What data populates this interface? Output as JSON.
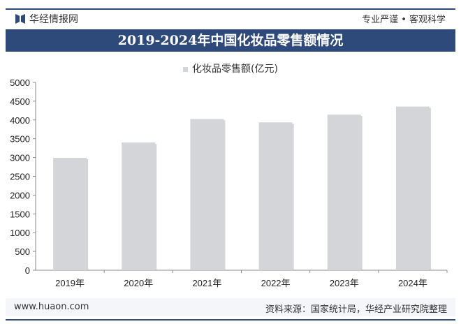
{
  "header": {
    "brand": "华经情报网",
    "slogan": "专业严谨 • 客观科学"
  },
  "footer": {
    "website": "www.huaon.com",
    "source": "资料来源：国家统计局，华经产业研究院整理"
  },
  "colors": {
    "banner": "#2e4a7a",
    "bar": "#d4d5d8"
  },
  "chart_data": {
    "type": "bar",
    "title": "2019-2024年中国化妆品零售额情况",
    "legend": [
      "化妆品零售额(亿元)"
    ],
    "legend_position": "top-center",
    "categories": [
      "2019年",
      "2020年",
      "2021年",
      "2022年",
      "2023年",
      "2024年"
    ],
    "values": [
      2992,
      3400,
      4026,
      3936,
      4142,
      4357
    ],
    "ylim": [
      0,
      5000
    ],
    "yticks": [
      0,
      500,
      1000,
      1500,
      2000,
      2500,
      3000,
      3500,
      4000,
      4500,
      5000
    ],
    "xlabel": "",
    "ylabel": "",
    "grid": false
  }
}
